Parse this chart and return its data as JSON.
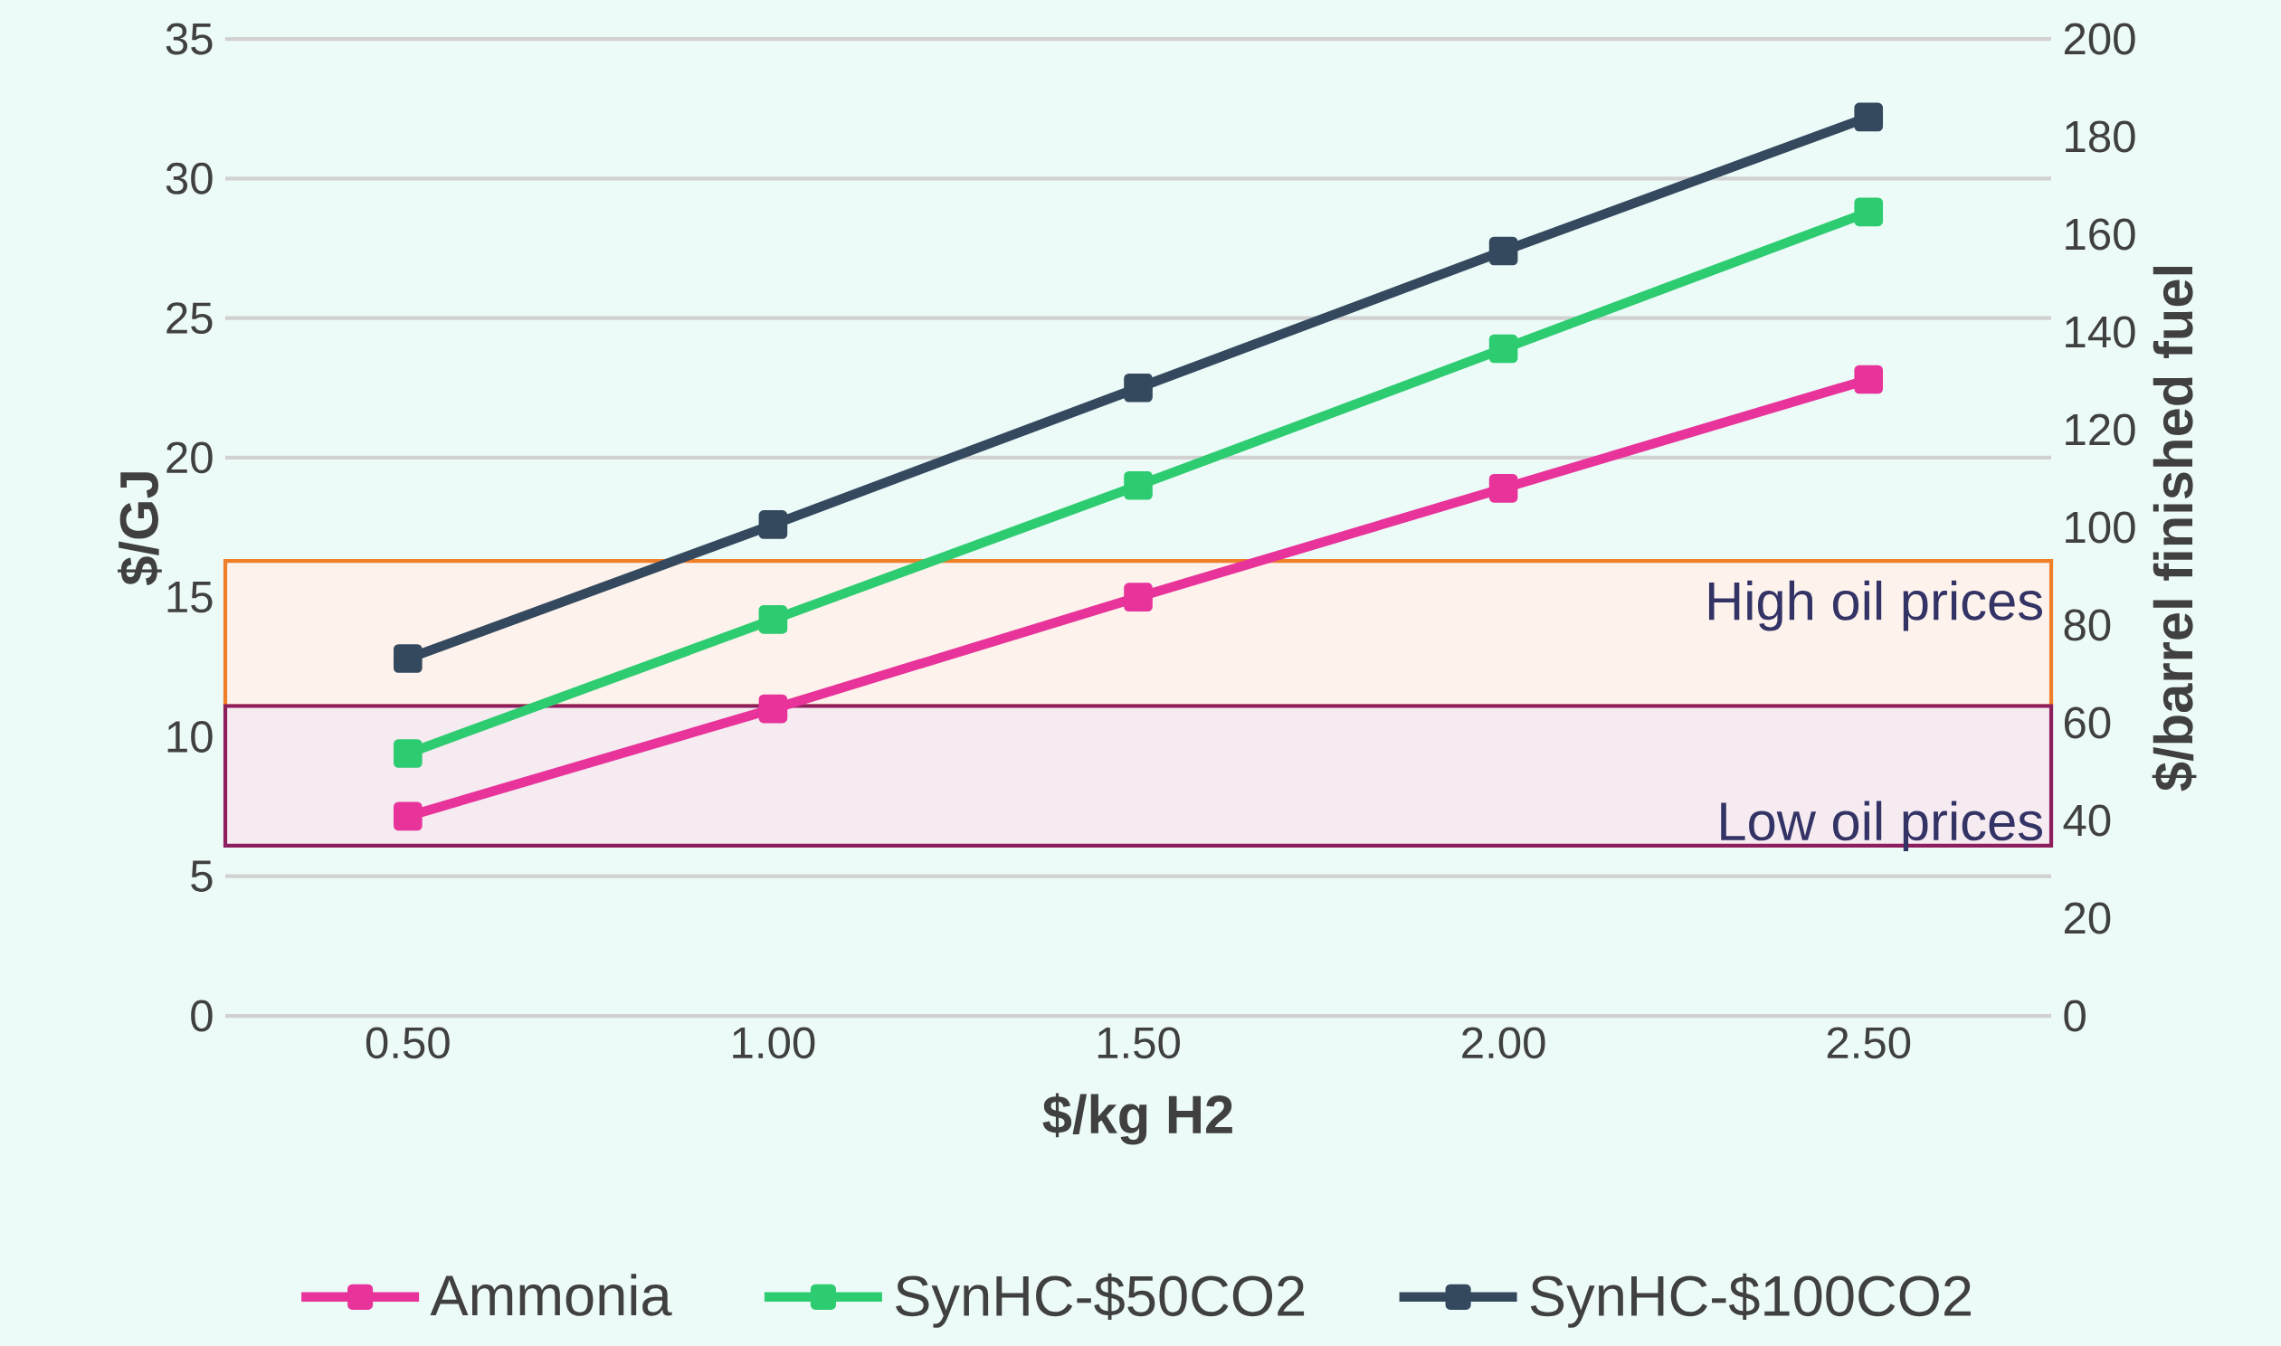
{
  "chart_data": {
    "type": "line",
    "xlabel": "$/kg H2",
    "ylabel": "$/GJ",
    "y2label": "$/barrel finished fuel",
    "x": [
      0.5,
      1.0,
      1.5,
      2.0,
      2.5
    ],
    "series": [
      {
        "name": "Ammonia",
        "color": "#e8339a",
        "values": [
          7.15,
          11.0,
          15.0,
          18.9,
          22.8
        ]
      },
      {
        "name": "SynHC-$50CO2",
        "color": "#2ecc71",
        "values": [
          9.4,
          14.2,
          19.0,
          23.9,
          28.8
        ]
      },
      {
        "name": "SynHC-$100CO2",
        "color": "#34495e",
        "values": [
          12.8,
          17.6,
          22.5,
          27.4,
          32.2
        ]
      }
    ],
    "xlim": [
      0.25,
      2.75
    ],
    "xticks": [
      {
        "value": 0.5,
        "label": "0.50"
      },
      {
        "value": 1.0,
        "label": "1.00"
      },
      {
        "value": 1.5,
        "label": "1.50"
      },
      {
        "value": 2.0,
        "label": "2.00"
      },
      {
        "value": 2.5,
        "label": "2.50"
      }
    ],
    "ylim": [
      0,
      35
    ],
    "yticks": [
      0,
      5,
      10,
      15,
      20,
      25,
      30,
      35
    ],
    "y2lim": [
      0,
      200
    ],
    "y2ticks": [
      0,
      20,
      40,
      60,
      80,
      100,
      120,
      140,
      160,
      180,
      200
    ],
    "bands": [
      {
        "axis": "y",
        "from": 11.1,
        "to": 16.3,
        "label": "High oil prices",
        "color": "#f07f2a"
      },
      {
        "axis": "y",
        "from": 6.1,
        "to": 11.1,
        "label": "Low oil prices",
        "color": "#8e1f5e"
      }
    ],
    "grid": "y",
    "legend": "bottom",
    "marker": "square",
    "line_style": "solid"
  }
}
